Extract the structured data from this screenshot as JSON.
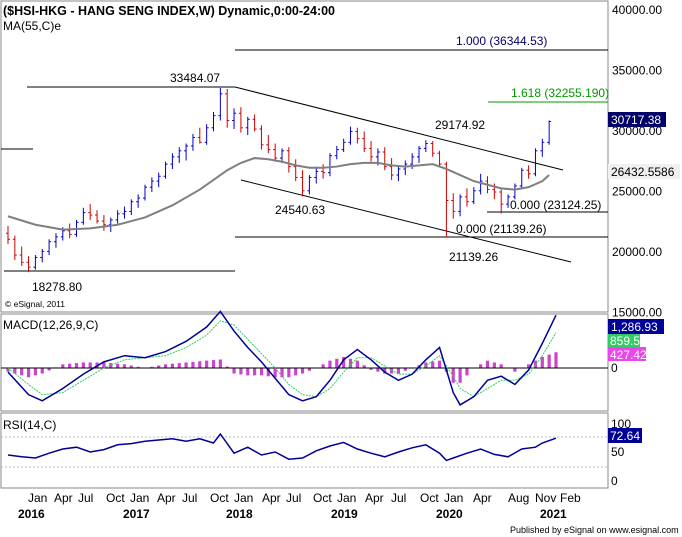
{
  "colors": {
    "up": "#0000cc",
    "down": "#cc0000",
    "ma": "#7f7f7f",
    "macd": "#000099",
    "signal": "#33cc66",
    "hist": "#cc44cc",
    "rsi": "#000099",
    "fib": "#000066",
    "fib_green": "#009900"
  },
  "chart_data": [
    {
      "type": "candlestick",
      "title": "($HSI-HKG - HANG SENG INDEX,W) Dynamic,0:00-24:00",
      "indicator_label": "MA(55,C)e",
      "credit": "© eSignal, 2011",
      "yticks": [
        "40000.00",
        "35000.00",
        "30000.00",
        "25000.00",
        "20000.00",
        "15000.00"
      ],
      "ylim": [
        15000,
        40000
      ],
      "price_ohlc": [
        [
          21500,
          22100,
          20600,
          21000
        ],
        [
          21000,
          21300,
          19300,
          19700
        ],
        [
          19700,
          20400,
          18800,
          19100
        ],
        [
          19100,
          19600,
          18279,
          18700
        ],
        [
          18700,
          19700,
          18500,
          19500
        ],
        [
          19500,
          20200,
          19100,
          20000
        ],
        [
          20000,
          21000,
          19700,
          20800
        ],
        [
          20800,
          21500,
          20300,
          21200
        ],
        [
          21200,
          22000,
          20900,
          21700
        ],
        [
          21700,
          22300,
          21100,
          21400
        ],
        [
          21400,
          22600,
          21200,
          22400
        ],
        [
          22400,
          23600,
          22200,
          23200
        ],
        [
          23200,
          23900,
          22600,
          23000
        ],
        [
          23000,
          23400,
          22300,
          22500
        ],
        [
          22500,
          23000,
          21700,
          22200
        ],
        [
          22200,
          22800,
          21600,
          22600
        ],
        [
          22600,
          23400,
          22300,
          23100
        ],
        [
          23100,
          23700,
          22700,
          23300
        ],
        [
          23300,
          24300,
          23000,
          24100
        ],
        [
          24100,
          24700,
          23600,
          24400
        ],
        [
          24400,
          25500,
          24200,
          25300
        ],
        [
          25300,
          26100,
          24900,
          25800
        ],
        [
          25800,
          26500,
          25300,
          26200
        ],
        [
          26200,
          27400,
          26000,
          27200
        ],
        [
          27200,
          28100,
          26800,
          27800
        ],
        [
          27800,
          28600,
          27300,
          28300
        ],
        [
          28300,
          28900,
          27500,
          28700
        ],
        [
          28700,
          29700,
          28300,
          29400
        ],
        [
          29400,
          30200,
          28900,
          29000
        ],
        [
          29000,
          30500,
          28800,
          30200
        ],
        [
          30200,
          31500,
          29900,
          31200
        ],
        [
          31200,
          33484,
          30800,
          33000
        ],
        [
          33000,
          33400,
          30200,
          30800
        ],
        [
          30800,
          31800,
          30100,
          31400
        ],
        [
          31400,
          31900,
          29800,
          30200
        ],
        [
          30200,
          31100,
          29600,
          30900
        ],
        [
          30900,
          31300,
          29900,
          30100
        ],
        [
          30100,
          30400,
          28400,
          28800
        ],
        [
          28800,
          29600,
          28100,
          28400
        ],
        [
          28400,
          28900,
          27400,
          27700
        ],
        [
          27700,
          28500,
          27300,
          28300
        ],
        [
          28300,
          28600,
          26500,
          27000
        ],
        [
          27000,
          27600,
          25800,
          26100
        ],
        [
          26100,
          26700,
          24541,
          25000
        ],
        [
          25000,
          26300,
          24700,
          26100
        ],
        [
          26100,
          27000,
          25600,
          26600
        ],
        [
          26600,
          27200,
          26000,
          26500
        ],
        [
          26500,
          28100,
          26200,
          27900
        ],
        [
          27900,
          28700,
          27600,
          28400
        ],
        [
          28400,
          29300,
          28200,
          29000
        ],
        [
          29000,
          30300,
          28800,
          29900
        ],
        [
          29900,
          30200,
          28900,
          29300
        ],
        [
          29300,
          29900,
          28200,
          28500
        ],
        [
          28500,
          29100,
          27400,
          27800
        ],
        [
          27800,
          28500,
          27100,
          28200
        ],
        [
          28200,
          28600,
          26700,
          27000
        ],
        [
          27000,
          27700,
          25900,
          26300
        ],
        [
          26300,
          27100,
          25800,
          26800
        ],
        [
          26800,
          27500,
          26300,
          27200
        ],
        [
          27200,
          28100,
          26800,
          27800
        ],
        [
          27800,
          28700,
          27300,
          28500
        ],
        [
          28500,
          29174,
          28200,
          28900
        ],
        [
          28900,
          29100,
          27800,
          28100
        ],
        [
          28100,
          28300,
          27000,
          27200
        ],
        [
          27200,
          27400,
          21139,
          24200
        ],
        [
          24200,
          24800,
          22700,
          23300
        ],
        [
          23300,
          24700,
          22900,
          24500
        ],
        [
          24500,
          25200,
          23700,
          24100
        ],
        [
          24100,
          25300,
          23900,
          25000
        ],
        [
          25000,
          26400,
          24700,
          25800
        ],
        [
          25800,
          26200,
          24800,
          25100
        ],
        [
          25100,
          25600,
          24300,
          24900
        ],
        [
          24900,
          25100,
          23124,
          23900
        ],
        [
          23900,
          24700,
          23600,
          24500
        ],
        [
          24500,
          25600,
          24300,
          25400
        ],
        [
          25400,
          26900,
          25200,
          26700
        ],
        [
          26700,
          27100,
          26000,
          26400
        ],
        [
          26400,
          28500,
          26200,
          28300
        ],
        [
          28300,
          29300,
          27800,
          29000
        ],
        [
          29000,
          30800,
          28800,
          30717
        ]
      ],
      "ma55_points": [
        [
          0,
          22900
        ],
        [
          4,
          22200
        ],
        [
          8,
          21800
        ],
        [
          12,
          21900
        ],
        [
          16,
          22200
        ],
        [
          20,
          22800
        ],
        [
          24,
          23800
        ],
        [
          28,
          25100
        ],
        [
          30,
          25900
        ],
        [
          32,
          26700
        ],
        [
          34,
          27300
        ],
        [
          36,
          27700
        ],
        [
          38,
          27600
        ],
        [
          40,
          27400
        ],
        [
          42,
          27100
        ],
        [
          44,
          26900
        ],
        [
          46,
          26900
        ],
        [
          48,
          27000
        ],
        [
          50,
          27200
        ],
        [
          52,
          27300
        ],
        [
          54,
          27300
        ],
        [
          56,
          27100
        ],
        [
          58,
          27000
        ],
        [
          60,
          27100
        ],
        [
          62,
          27200
        ],
        [
          64,
          26800
        ],
        [
          66,
          26300
        ],
        [
          68,
          25800
        ],
        [
          70,
          25500
        ],
        [
          72,
          25200
        ],
        [
          74,
          25100
        ],
        [
          76,
          25300
        ],
        [
          78,
          25800
        ],
        [
          79,
          26300
        ]
      ],
      "annotations": [
        "33484.07",
        "29174.92",
        "24540.63",
        "18278.80",
        "21139.26",
        "1.000 (36344.53)",
        "1.618 (32255.190)",
        "0.000 (23124.25)",
        "0.000 (21139.26)"
      ],
      "value_boxes": {
        "last": "30717.38",
        "ma": "26432.5586"
      }
    },
    {
      "type": "line",
      "title": "MACD(12,26,9,C)",
      "yticks": [
        "0"
      ],
      "values": {
        "macd": "1,286.93",
        "signal": "859.5",
        "hist": "427.42"
      },
      "macd_points": [
        [
          0,
          -100
        ],
        [
          3,
          -650
        ],
        [
          5,
          -800
        ],
        [
          8,
          -500
        ],
        [
          11,
          -150
        ],
        [
          14,
          150
        ],
        [
          17,
          300
        ],
        [
          20,
          250
        ],
        [
          23,
          400
        ],
        [
          26,
          650
        ],
        [
          29,
          1000
        ],
        [
          31,
          1380
        ],
        [
          33,
          900
        ],
        [
          35,
          500
        ],
        [
          37,
          150
        ],
        [
          39,
          -250
        ],
        [
          41,
          -650
        ],
        [
          43,
          -800
        ],
        [
          45,
          -700
        ],
        [
          47,
          -300
        ],
        [
          49,
          200
        ],
        [
          51,
          450
        ],
        [
          53,
          200
        ],
        [
          55,
          -100
        ],
        [
          57,
          -300
        ],
        [
          59,
          -150
        ],
        [
          61,
          200
        ],
        [
          63,
          500
        ],
        [
          65,
          -600
        ],
        [
          66,
          -900
        ],
        [
          68,
          -700
        ],
        [
          70,
          -300
        ],
        [
          72,
          -200
        ],
        [
          74,
          -400
        ],
        [
          76,
          -50
        ],
        [
          78,
          600
        ],
        [
          80,
          1287
        ]
      ],
      "signal_points": [
        [
          0,
          0
        ],
        [
          3,
          -400
        ],
        [
          5,
          -650
        ],
        [
          8,
          -600
        ],
        [
          11,
          -300
        ],
        [
          14,
          0
        ],
        [
          17,
          200
        ],
        [
          20,
          250
        ],
        [
          23,
          300
        ],
        [
          26,
          500
        ],
        [
          29,
          800
        ],
        [
          31,
          1150
        ],
        [
          33,
          1050
        ],
        [
          35,
          700
        ],
        [
          37,
          350
        ],
        [
          39,
          0
        ],
        [
          41,
          -400
        ],
        [
          43,
          -650
        ],
        [
          45,
          -700
        ],
        [
          47,
          -500
        ],
        [
          49,
          -100
        ],
        [
          51,
          250
        ],
        [
          53,
          250
        ],
        [
          55,
          50
        ],
        [
          57,
          -150
        ],
        [
          59,
          -150
        ],
        [
          61,
          50
        ],
        [
          63,
          300
        ],
        [
          65,
          -200
        ],
        [
          66,
          -500
        ],
        [
          68,
          -700
        ],
        [
          70,
          -500
        ],
        [
          72,
          -300
        ],
        [
          74,
          -300
        ],
        [
          76,
          -150
        ],
        [
          78,
          300
        ],
        [
          80,
          860
        ]
      ]
    },
    {
      "type": "line",
      "title": "RSI(14,C)",
      "yticks": [
        "100",
        "50",
        "0"
      ],
      "ylim": [
        0,
        100
      ],
      "value": "72.64",
      "rsi_points": [
        [
          0,
          45
        ],
        [
          2,
          42
        ],
        [
          4,
          40
        ],
        [
          6,
          48
        ],
        [
          8,
          55
        ],
        [
          10,
          58
        ],
        [
          12,
          50
        ],
        [
          14,
          54
        ],
        [
          16,
          62
        ],
        [
          18,
          64
        ],
        [
          20,
          68
        ],
        [
          22,
          70
        ],
        [
          24,
          72
        ],
        [
          26,
          68
        ],
        [
          28,
          72
        ],
        [
          30,
          65
        ],
        [
          31,
          80
        ],
        [
          33,
          48
        ],
        [
          35,
          58
        ],
        [
          37,
          45
        ],
        [
          39,
          50
        ],
        [
          41,
          38
        ],
        [
          43,
          40
        ],
        [
          45,
          52
        ],
        [
          47,
          60
        ],
        [
          49,
          66
        ],
        [
          51,
          55
        ],
        [
          53,
          48
        ],
        [
          55,
          42
        ],
        [
          57,
          50
        ],
        [
          59,
          57
        ],
        [
          61,
          62
        ],
        [
          63,
          48
        ],
        [
          64,
          36
        ],
        [
          65,
          40
        ],
        [
          67,
          48
        ],
        [
          69,
          55
        ],
        [
          71,
          46
        ],
        [
          73,
          42
        ],
        [
          75,
          55
        ],
        [
          77,
          58
        ],
        [
          78,
          65
        ],
        [
          80,
          73
        ]
      ]
    }
  ],
  "xaxis": {
    "months": [
      "Jan",
      "Apr",
      "Jul",
      "Oct",
      "Jan",
      "Apr",
      "Jul",
      "Oct",
      "Jan",
      "Apr",
      "Jul",
      "Oct",
      "Jan",
      "Apr",
      "Jul",
      "Oct",
      "Jan",
      "Apr",
      "Aug",
      "Nov",
      "Feb"
    ],
    "years": [
      "2016",
      "2017",
      "2018",
      "2019",
      "2020",
      "2021"
    ]
  },
  "footer": "Published by eSignal on www.esignal.com"
}
